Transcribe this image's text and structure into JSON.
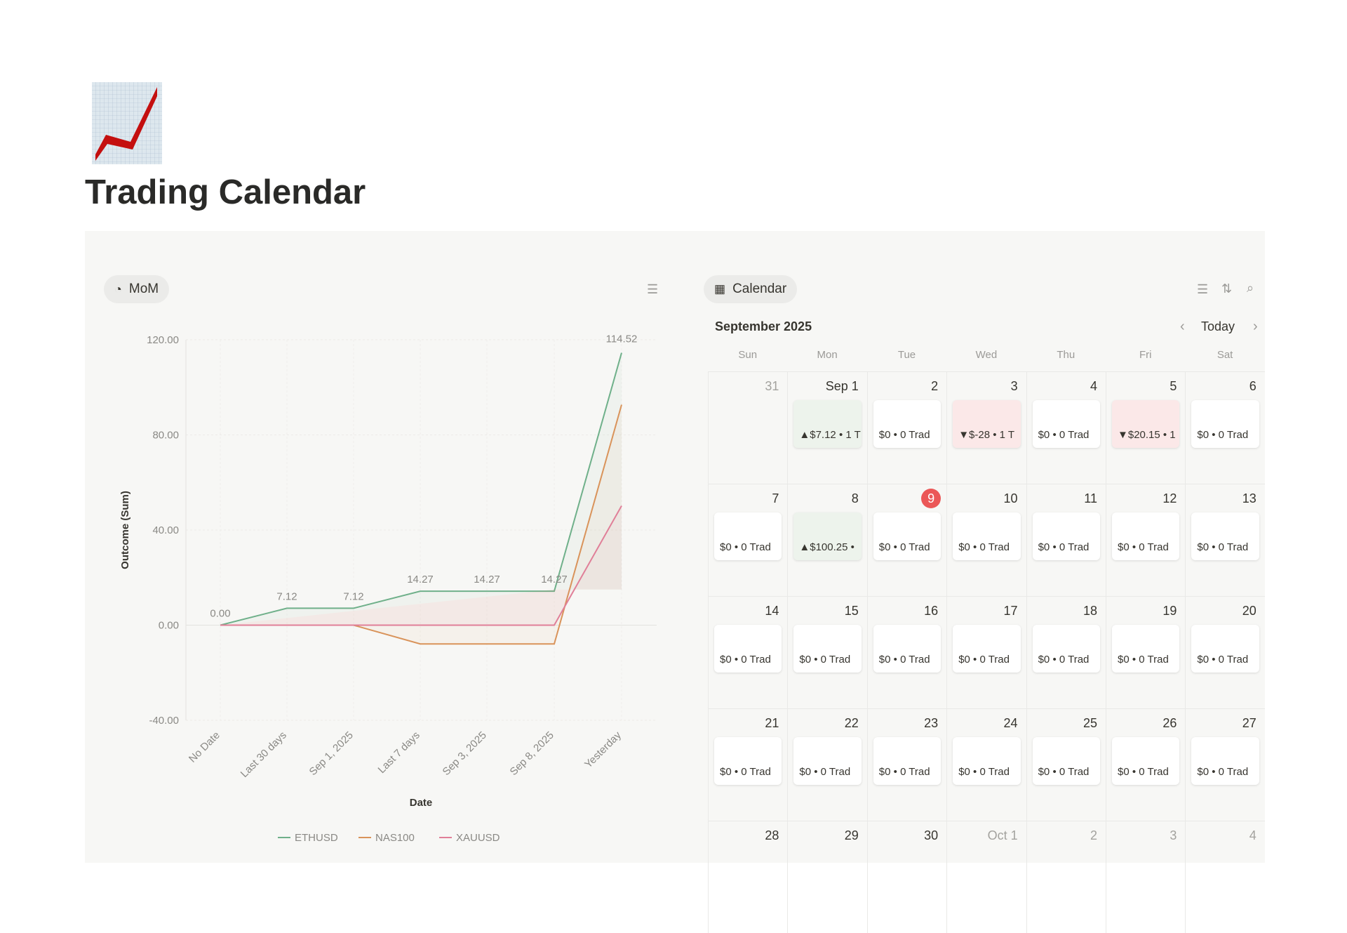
{
  "page": {
    "title": "Trading Calendar",
    "icon": "chart-increasing-icon"
  },
  "chart_view": {
    "label": "MoM"
  },
  "calendar_view": {
    "label": "Calendar",
    "month": "September 2025",
    "today_label": "Today",
    "weekdays": [
      "Sun",
      "Mon",
      "Tue",
      "Wed",
      "Thu",
      "Fri",
      "Sat"
    ],
    "weeks": [
      [
        {
          "d": "31",
          "muted": true
        },
        {
          "d": "Sep 1",
          "e": "▲$7.12 • 1 T",
          "c": "pos"
        },
        {
          "d": "2",
          "e": "$0 • 0 Trad"
        },
        {
          "d": "3",
          "e": "▼$-28 • 1 T",
          "c": "neg"
        },
        {
          "d": "4",
          "e": "$0 • 0 Trad"
        },
        {
          "d": "5",
          "e": "▼$20.15 • 1",
          "c": "neg"
        },
        {
          "d": "6",
          "e": "$0 • 0 Trad"
        }
      ],
      [
        {
          "d": "7",
          "e": "$0 • 0 Trad"
        },
        {
          "d": "8",
          "e": "▲$100.25 •",
          "c": "pos"
        },
        {
          "d": "9",
          "e": "$0 • 0 Trad",
          "today": true
        },
        {
          "d": "10",
          "e": "$0 • 0 Trad"
        },
        {
          "d": "11",
          "e": "$0 • 0 Trad"
        },
        {
          "d": "12",
          "e": "$0 • 0 Trad"
        },
        {
          "d": "13",
          "e": "$0 • 0 Trad"
        }
      ],
      [
        {
          "d": "14",
          "e": "$0 • 0 Trad"
        },
        {
          "d": "15",
          "e": "$0 • 0 Trad"
        },
        {
          "d": "16",
          "e": "$0 • 0 Trad"
        },
        {
          "d": "17",
          "e": "$0 • 0 Trad"
        },
        {
          "d": "18",
          "e": "$0 • 0 Trad"
        },
        {
          "d": "19",
          "e": "$0 • 0 Trad"
        },
        {
          "d": "20",
          "e": "$0 • 0 Trad"
        }
      ],
      [
        {
          "d": "21",
          "e": "$0 • 0 Trad"
        },
        {
          "d": "22",
          "e": "$0 • 0 Trad"
        },
        {
          "d": "23",
          "e": "$0 • 0 Trad"
        },
        {
          "d": "24",
          "e": "$0 • 0 Trad"
        },
        {
          "d": "25",
          "e": "$0 • 0 Trad"
        },
        {
          "d": "26",
          "e": "$0 • 0 Trad"
        },
        {
          "d": "27",
          "e": "$0 • 0 Trad"
        }
      ],
      [
        {
          "d": "28"
        },
        {
          "d": "29"
        },
        {
          "d": "30"
        },
        {
          "d": "Oct 1",
          "muted": true
        },
        {
          "d": "2",
          "muted": true
        },
        {
          "d": "3",
          "muted": true
        },
        {
          "d": "4",
          "muted": true
        }
      ]
    ],
    "colors": {
      "pos": "#edf3ec",
      "neg": "#fbe8e8",
      "today": "#eb5757"
    }
  },
  "chart_data": {
    "type": "line",
    "xlabel": "Date",
    "ylabel": "Outcome (Sum)",
    "ylim": [
      -40,
      120
    ],
    "yticks": [
      "120.00",
      "80.00",
      "40.00",
      "0.00",
      "-40.00"
    ],
    "categories": [
      "No Date",
      "Last 30 days",
      "Sep 1, 2025",
      "Last 7 days",
      "Sep 3, 2025",
      "Sep 8, 2025",
      "Yesterday"
    ],
    "series": [
      {
        "name": "ETHUSD",
        "color": "#6fb08a",
        "values": [
          0,
          7.12,
          7.12,
          14.27,
          14.27,
          14.27,
          114.52
        ],
        "labels": [
          "0.00",
          "7.12",
          "7.12",
          "14.27",
          "14.27",
          "14.27",
          "114.52"
        ]
      },
      {
        "name": "NAS100",
        "color": "#d9935a",
        "values": [
          0,
          0,
          0,
          -7.9,
          -7.9,
          -7.9,
          92.7
        ]
      },
      {
        "name": "XAUUSD",
        "color": "#e07f98",
        "values": [
          0,
          0,
          0,
          0,
          0,
          0,
          50.2
        ]
      }
    ],
    "grid": true,
    "legend": "bottom"
  }
}
